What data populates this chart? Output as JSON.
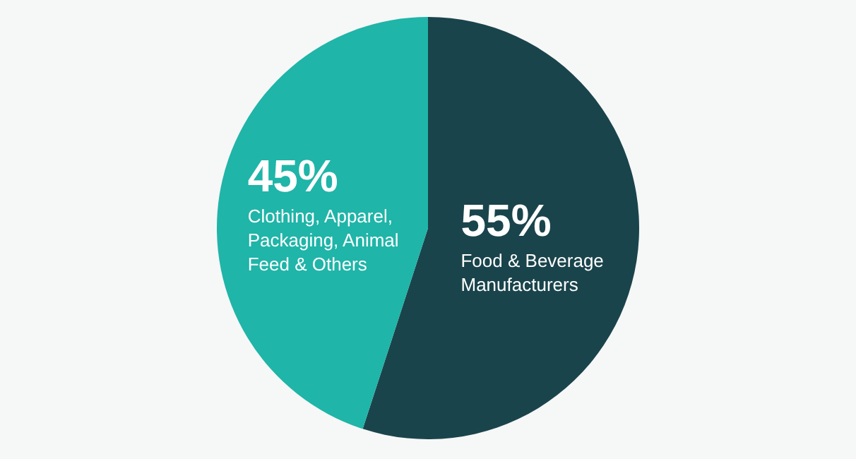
{
  "chart_data": {
    "type": "pie",
    "categories": [
      "Food & Beverage Manufacturers",
      "Clothing, Apparel, Packaging, Animal Feed & Others"
    ],
    "values": [
      55,
      45
    ],
    "colors": [
      "#1a444b",
      "#1fb5a8"
    ],
    "value_labels": [
      "55%",
      "45%"
    ],
    "legend": false
  }
}
